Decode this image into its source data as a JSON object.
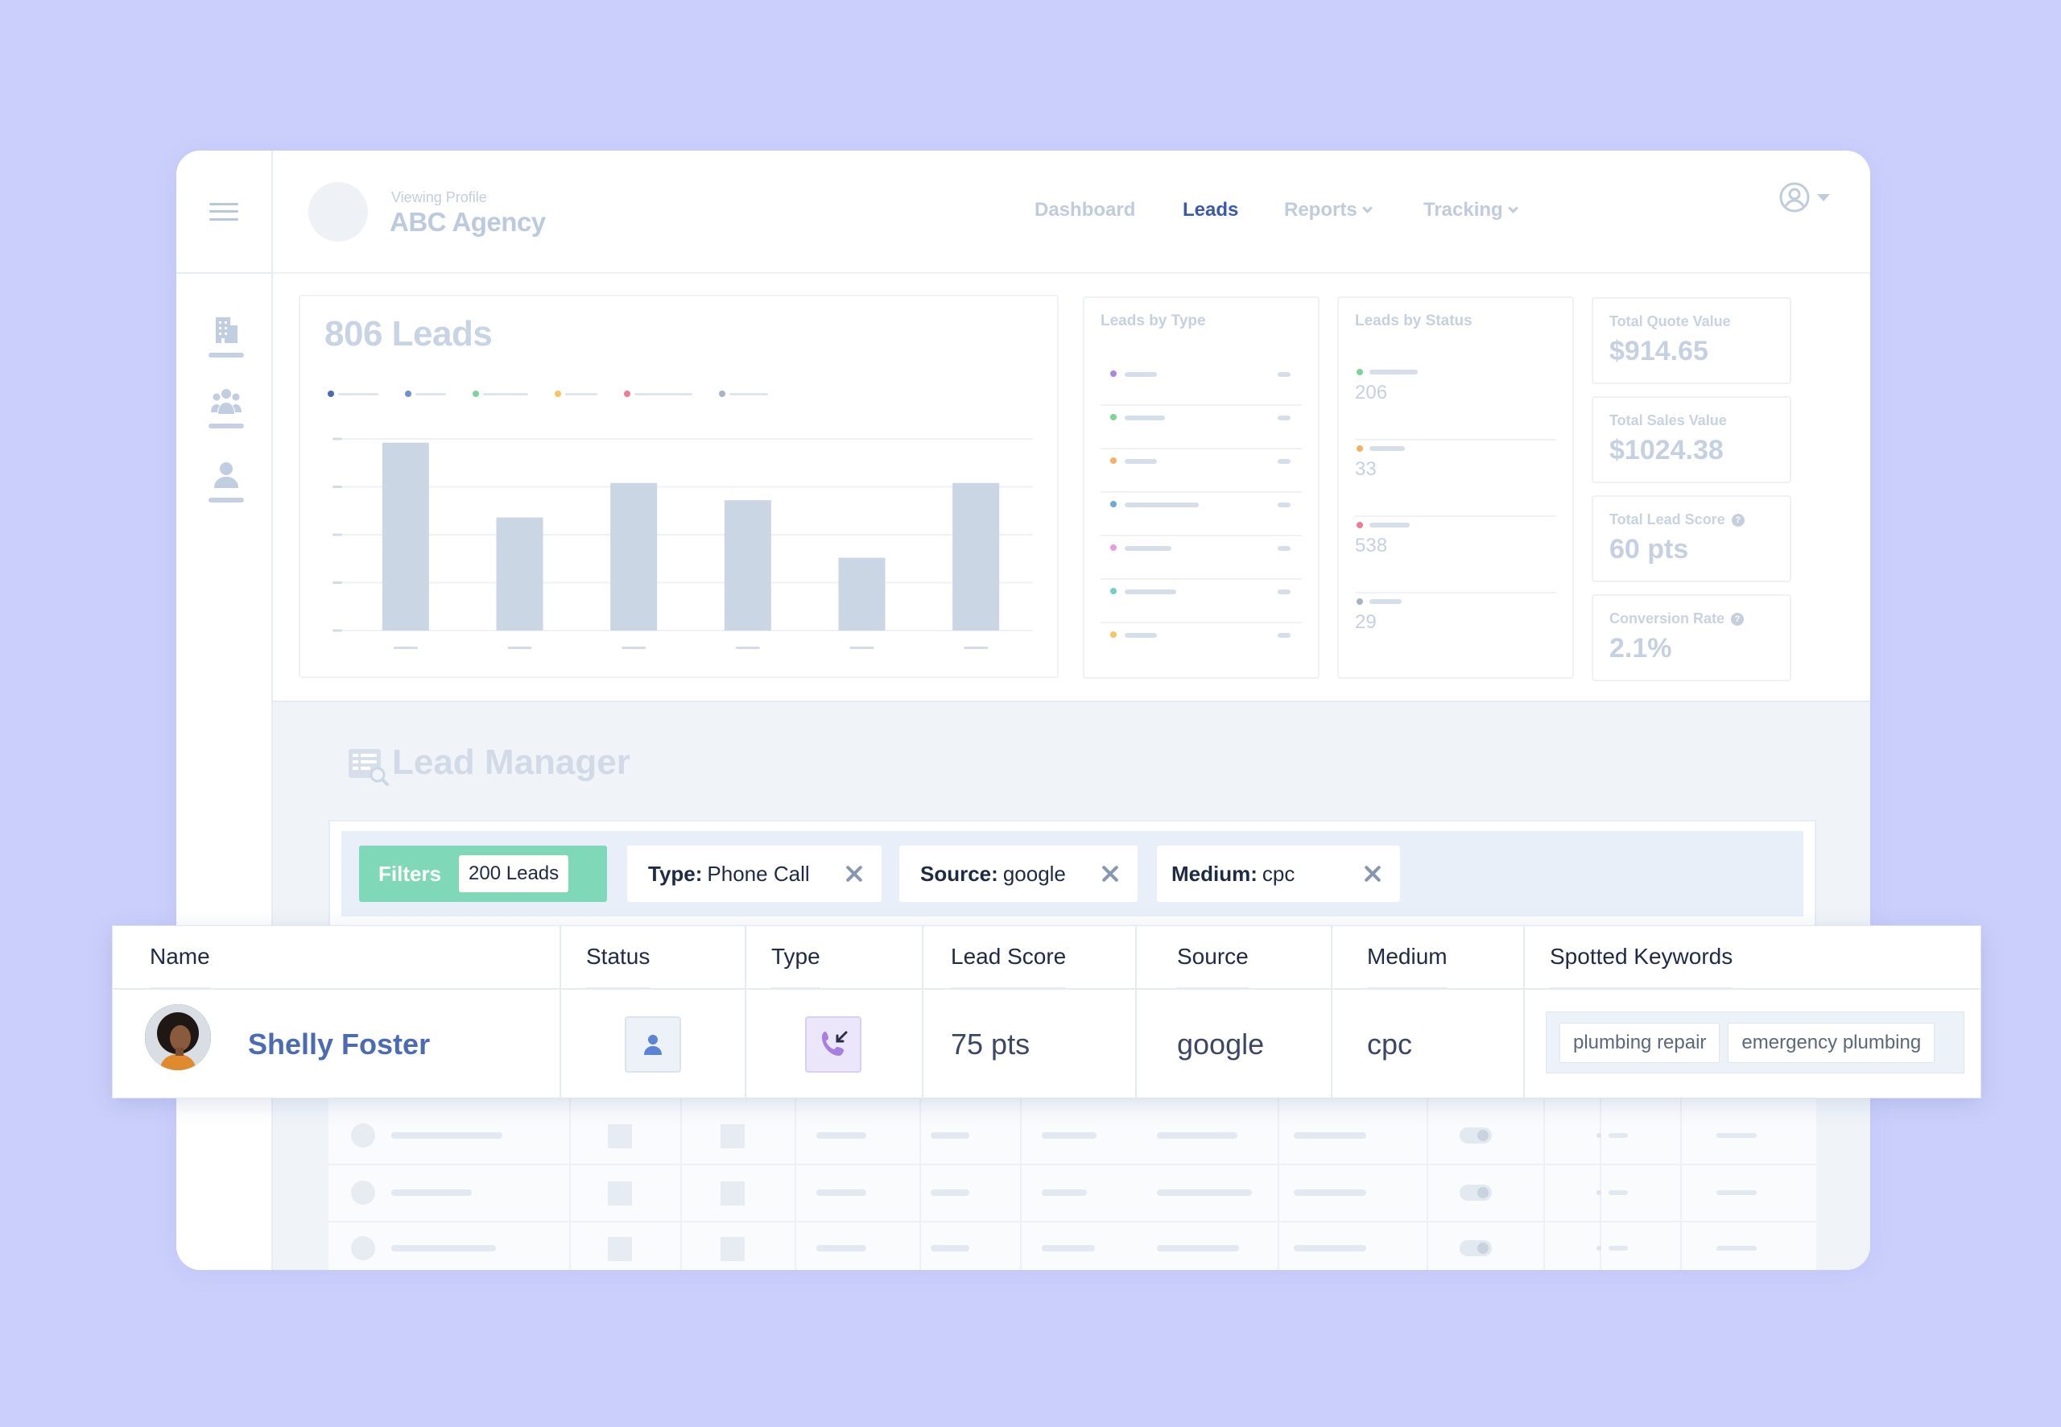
{
  "header": {
    "viewing_label": "Viewing Profile",
    "agency_name": "ABC Agency",
    "nav": [
      {
        "label": "Dashboard"
      },
      {
        "label": "Leads"
      },
      {
        "label": "Reports"
      },
      {
        "label": "Tracking"
      }
    ]
  },
  "overview": {
    "leads_title": "806 Leads",
    "leads_by_type_label": "Leads by Type",
    "leads_by_status_label": "Leads by Status",
    "status_values": [
      "206",
      "33",
      "538",
      "29"
    ],
    "stats": [
      {
        "label": "Total Quote Value",
        "value": "$914.65"
      },
      {
        "label": "Total Sales Value",
        "value": "$1024.38"
      },
      {
        "label": "Total Lead Score",
        "value": "60 pts"
      },
      {
        "label": "Conversion Rate",
        "value": "2.1%"
      }
    ]
  },
  "chart_data": {
    "type": "bar",
    "categories": [
      "",
      "",
      "",
      "",
      "",
      ""
    ],
    "values": [
      98,
      59,
      77,
      68,
      38,
      77
    ],
    "ylim": [
      0,
      100
    ],
    "grid": true,
    "legend_placement": "top-left",
    "colors": {
      "bar": "#cbd6e4",
      "legend_dots": [
        "#4a69b3",
        "#6f8fd0",
        "#7fd39a",
        "#f5c463",
        "#f07a90",
        "#a9b3c2"
      ]
    }
  },
  "lead_manager": {
    "title": "Lead Manager",
    "filters_label": "Filters",
    "filters_count": "200 Leads",
    "chips": [
      {
        "key": "Type:",
        "value": "Phone Call"
      },
      {
        "key": "Source:",
        "value": "google"
      },
      {
        "key": "Medium:",
        "value": "cpc"
      }
    ]
  },
  "table": {
    "columns": [
      "Name",
      "Status",
      "Type",
      "Lead Score",
      "Source",
      "Medium",
      "Spotted Keywords"
    ],
    "row": {
      "name": "Shelly Foster",
      "status_icon": "person-icon",
      "type_icon": "incoming-call-icon",
      "lead_score": "75 pts",
      "source": "google",
      "medium": "cpc",
      "keywords": [
        "plumbing repair",
        "emergency plumbing"
      ]
    }
  },
  "colors": {
    "background": "#cbcffb",
    "accent": "#3a5aa8",
    "filters_green": "#7fd8b7",
    "name_link": "#4b6bb3"
  }
}
